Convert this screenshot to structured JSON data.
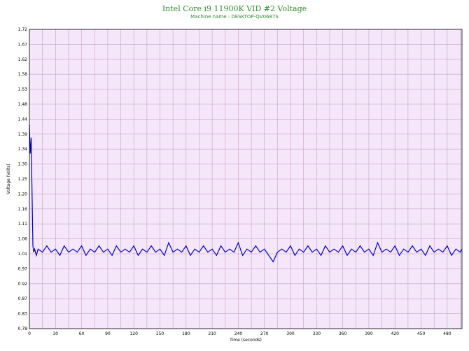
{
  "chart_data": {
    "type": "line",
    "title": "Intel Core i9 11900K VID #2 Voltage",
    "subtitle": "Machine name : DESKTOP-QV0687S",
    "xlabel": "Time (seconds)",
    "ylabel": "Voltage (Volts)",
    "xlim": [
      0,
      497
    ],
    "ylim": [
      0.78,
      1.72
    ],
    "x_ticks": [
      0,
      30,
      60,
      90,
      120,
      150,
      180,
      210,
      240,
      270,
      300,
      330,
      360,
      390,
      420,
      450,
      480
    ],
    "y_ticks": [
      "0.78",
      "0.83",
      "0.87",
      "0.92",
      "0.97",
      "1.01",
      "1.06",
      "1.11",
      "1.16",
      "1.20",
      "1.25",
      "1.30",
      "1.34",
      "1.39",
      "1.44",
      "1.48",
      "1.53",
      "1.58",
      "1.62",
      "1.67",
      "1.72"
    ],
    "grid": true,
    "background_color": "#f5e6fa",
    "grid_color": "#c8a0c8",
    "series": [
      {
        "color": "#0000cc",
        "x": [
          0,
          1,
          2,
          3,
          4,
          5,
          6,
          8,
          10,
          15,
          20,
          25,
          30,
          35,
          40,
          45,
          50,
          55,
          60,
          65,
          70,
          75,
          80,
          85,
          90,
          95,
          100,
          105,
          110,
          115,
          120,
          125,
          130,
          135,
          140,
          145,
          150,
          155,
          160,
          165,
          170,
          175,
          180,
          185,
          190,
          195,
          200,
          205,
          210,
          215,
          220,
          225,
          230,
          235,
          240,
          245,
          250,
          255,
          260,
          265,
          270,
          275,
          280,
          285,
          290,
          295,
          300,
          305,
          310,
          315,
          320,
          325,
          330,
          335,
          340,
          345,
          350,
          355,
          360,
          365,
          370,
          375,
          380,
          385,
          390,
          395,
          400,
          405,
          410,
          415,
          420,
          425,
          430,
          435,
          440,
          445,
          450,
          455,
          460,
          465,
          470,
          475,
          480,
          485,
          490,
          495,
          497
        ],
        "y": [
          1.42,
          1.33,
          1.38,
          1.22,
          1.04,
          1.02,
          1.03,
          1.01,
          1.03,
          1.02,
          1.04,
          1.02,
          1.03,
          1.01,
          1.04,
          1.02,
          1.03,
          1.02,
          1.04,
          1.01,
          1.03,
          1.02,
          1.04,
          1.02,
          1.03,
          1.01,
          1.04,
          1.02,
          1.03,
          1.02,
          1.04,
          1.01,
          1.03,
          1.02,
          1.04,
          1.02,
          1.03,
          1.01,
          1.05,
          1.02,
          1.03,
          1.02,
          1.04,
          1.01,
          1.03,
          1.02,
          1.04,
          1.02,
          1.03,
          1.01,
          1.04,
          1.02,
          1.03,
          1.02,
          1.05,
          1.01,
          1.03,
          1.02,
          1.04,
          1.02,
          1.03,
          1.01,
          0.99,
          1.02,
          1.03,
          1.02,
          1.04,
          1.01,
          1.03,
          1.02,
          1.04,
          1.02,
          1.03,
          1.01,
          1.04,
          1.02,
          1.03,
          1.02,
          1.04,
          1.01,
          1.03,
          1.02,
          1.04,
          1.02,
          1.03,
          1.01,
          1.05,
          1.02,
          1.03,
          1.02,
          1.04,
          1.01,
          1.03,
          1.02,
          1.04,
          1.02,
          1.03,
          1.01,
          1.04,
          1.02,
          1.03,
          1.02,
          1.04,
          1.01,
          1.03,
          1.02,
          1.03
        ]
      }
    ]
  }
}
